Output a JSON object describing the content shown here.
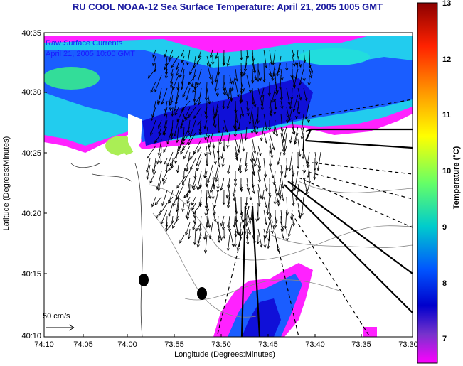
{
  "title": "RU COOL  NOAA-12  Sea Surface Temperature:  April 21, 2005 1005 GMT",
  "legend": {
    "line1": "Raw Surface Currents",
    "line2": "April 21, 2005 10:00 GMT",
    "scale_label": "50 cm/s"
  },
  "axes": {
    "xlabel": "Longitude (Degrees:Minutes)",
    "ylabel": "Latitude (Degrees:Minutes)",
    "xticks": [
      "74:10",
      "74:05",
      "74:00",
      "73:55",
      "73:50",
      "73:45",
      "73:40",
      "73:35",
      "73:30"
    ],
    "yticks": [
      "40:35",
      "40:30",
      "40:25",
      "40:20",
      "40:15",
      "40:10"
    ]
  },
  "colorbar": {
    "label": "Temperature (°C)",
    "ticks": [
      "13",
      "12",
      "11",
      "10",
      "9",
      "8",
      "7"
    ],
    "colors": [
      "#8b0000",
      "#ff3300",
      "#ffaa00",
      "#ffff00",
      "#77ff55",
      "#00dddd",
      "#0066ff",
      "#0000dd",
      "#6633cc",
      "#ff00ff"
    ]
  }
}
